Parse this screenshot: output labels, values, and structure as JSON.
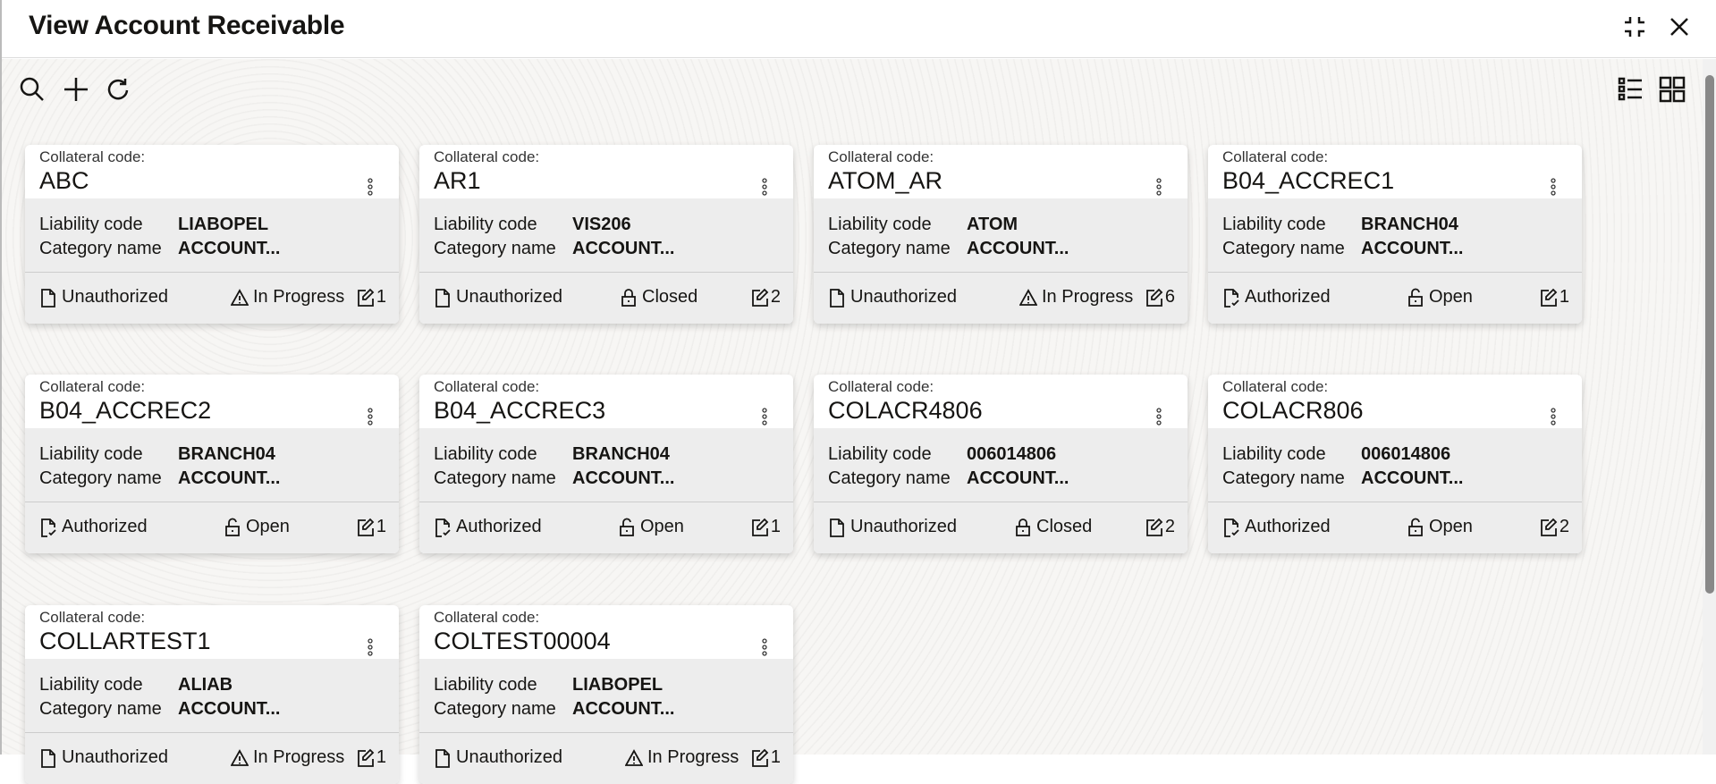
{
  "header": {
    "title": "View Account Receivable",
    "icons": [
      "minimize-icon",
      "close-icon"
    ]
  },
  "toolbar": {
    "icons": [
      "search-icon",
      "add-icon",
      "refresh-icon",
      "list-view-icon",
      "grid-view-icon"
    ]
  },
  "labels": {
    "collateral_code": "Collateral code:",
    "liability_code": "Liability code",
    "category_name": "Category name"
  },
  "cards": [
    {
      "code": "ABC",
      "liability": "LIABOPEL",
      "category": "ACCOUNT...",
      "auth": "Unauthorized",
      "status": "In Progress",
      "status_icon": "warning",
      "mods": "1"
    },
    {
      "code": "AR1",
      "liability": "VIS206",
      "category": "ACCOUNT...",
      "auth": "Unauthorized",
      "status": "Closed",
      "status_icon": "lock",
      "mods": "2"
    },
    {
      "code": "ATOM_AR",
      "liability": "ATOM",
      "category": "ACCOUNT...",
      "auth": "Unauthorized",
      "status": "In Progress",
      "status_icon": "warning",
      "mods": "6"
    },
    {
      "code": "B04_ACCREC1",
      "liability": "BRANCH04",
      "category": "ACCOUNT...",
      "auth": "Authorized",
      "status": "Open",
      "status_icon": "unlock",
      "mods": "1"
    },
    {
      "code": "B04_ACCREC2",
      "liability": "BRANCH04",
      "category": "ACCOUNT...",
      "auth": "Authorized",
      "status": "Open",
      "status_icon": "unlock",
      "mods": "1"
    },
    {
      "code": "B04_ACCREC3",
      "liability": "BRANCH04",
      "category": "ACCOUNT...",
      "auth": "Authorized",
      "status": "Open",
      "status_icon": "unlock",
      "mods": "1"
    },
    {
      "code": "COLACR4806",
      "liability": "006014806",
      "category": "ACCOUNT...",
      "auth": "Unauthorized",
      "status": "Closed",
      "status_icon": "lock",
      "mods": "2"
    },
    {
      "code": "COLACR806",
      "liability": "006014806",
      "category": "ACCOUNT...",
      "auth": "Authorized",
      "status": "Open",
      "status_icon": "unlock",
      "mods": "2"
    },
    {
      "code": "COLLARTEST1",
      "liability": "ALIAB",
      "category": "ACCOUNT...",
      "auth": "Unauthorized",
      "status": "In Progress",
      "status_icon": "warning",
      "mods": "1"
    },
    {
      "code": "COLTEST00004",
      "liability": "LIABOPEL",
      "category": "ACCOUNT...",
      "auth": "Unauthorized",
      "status": "In Progress",
      "status_icon": "warning",
      "mods": "1"
    }
  ]
}
